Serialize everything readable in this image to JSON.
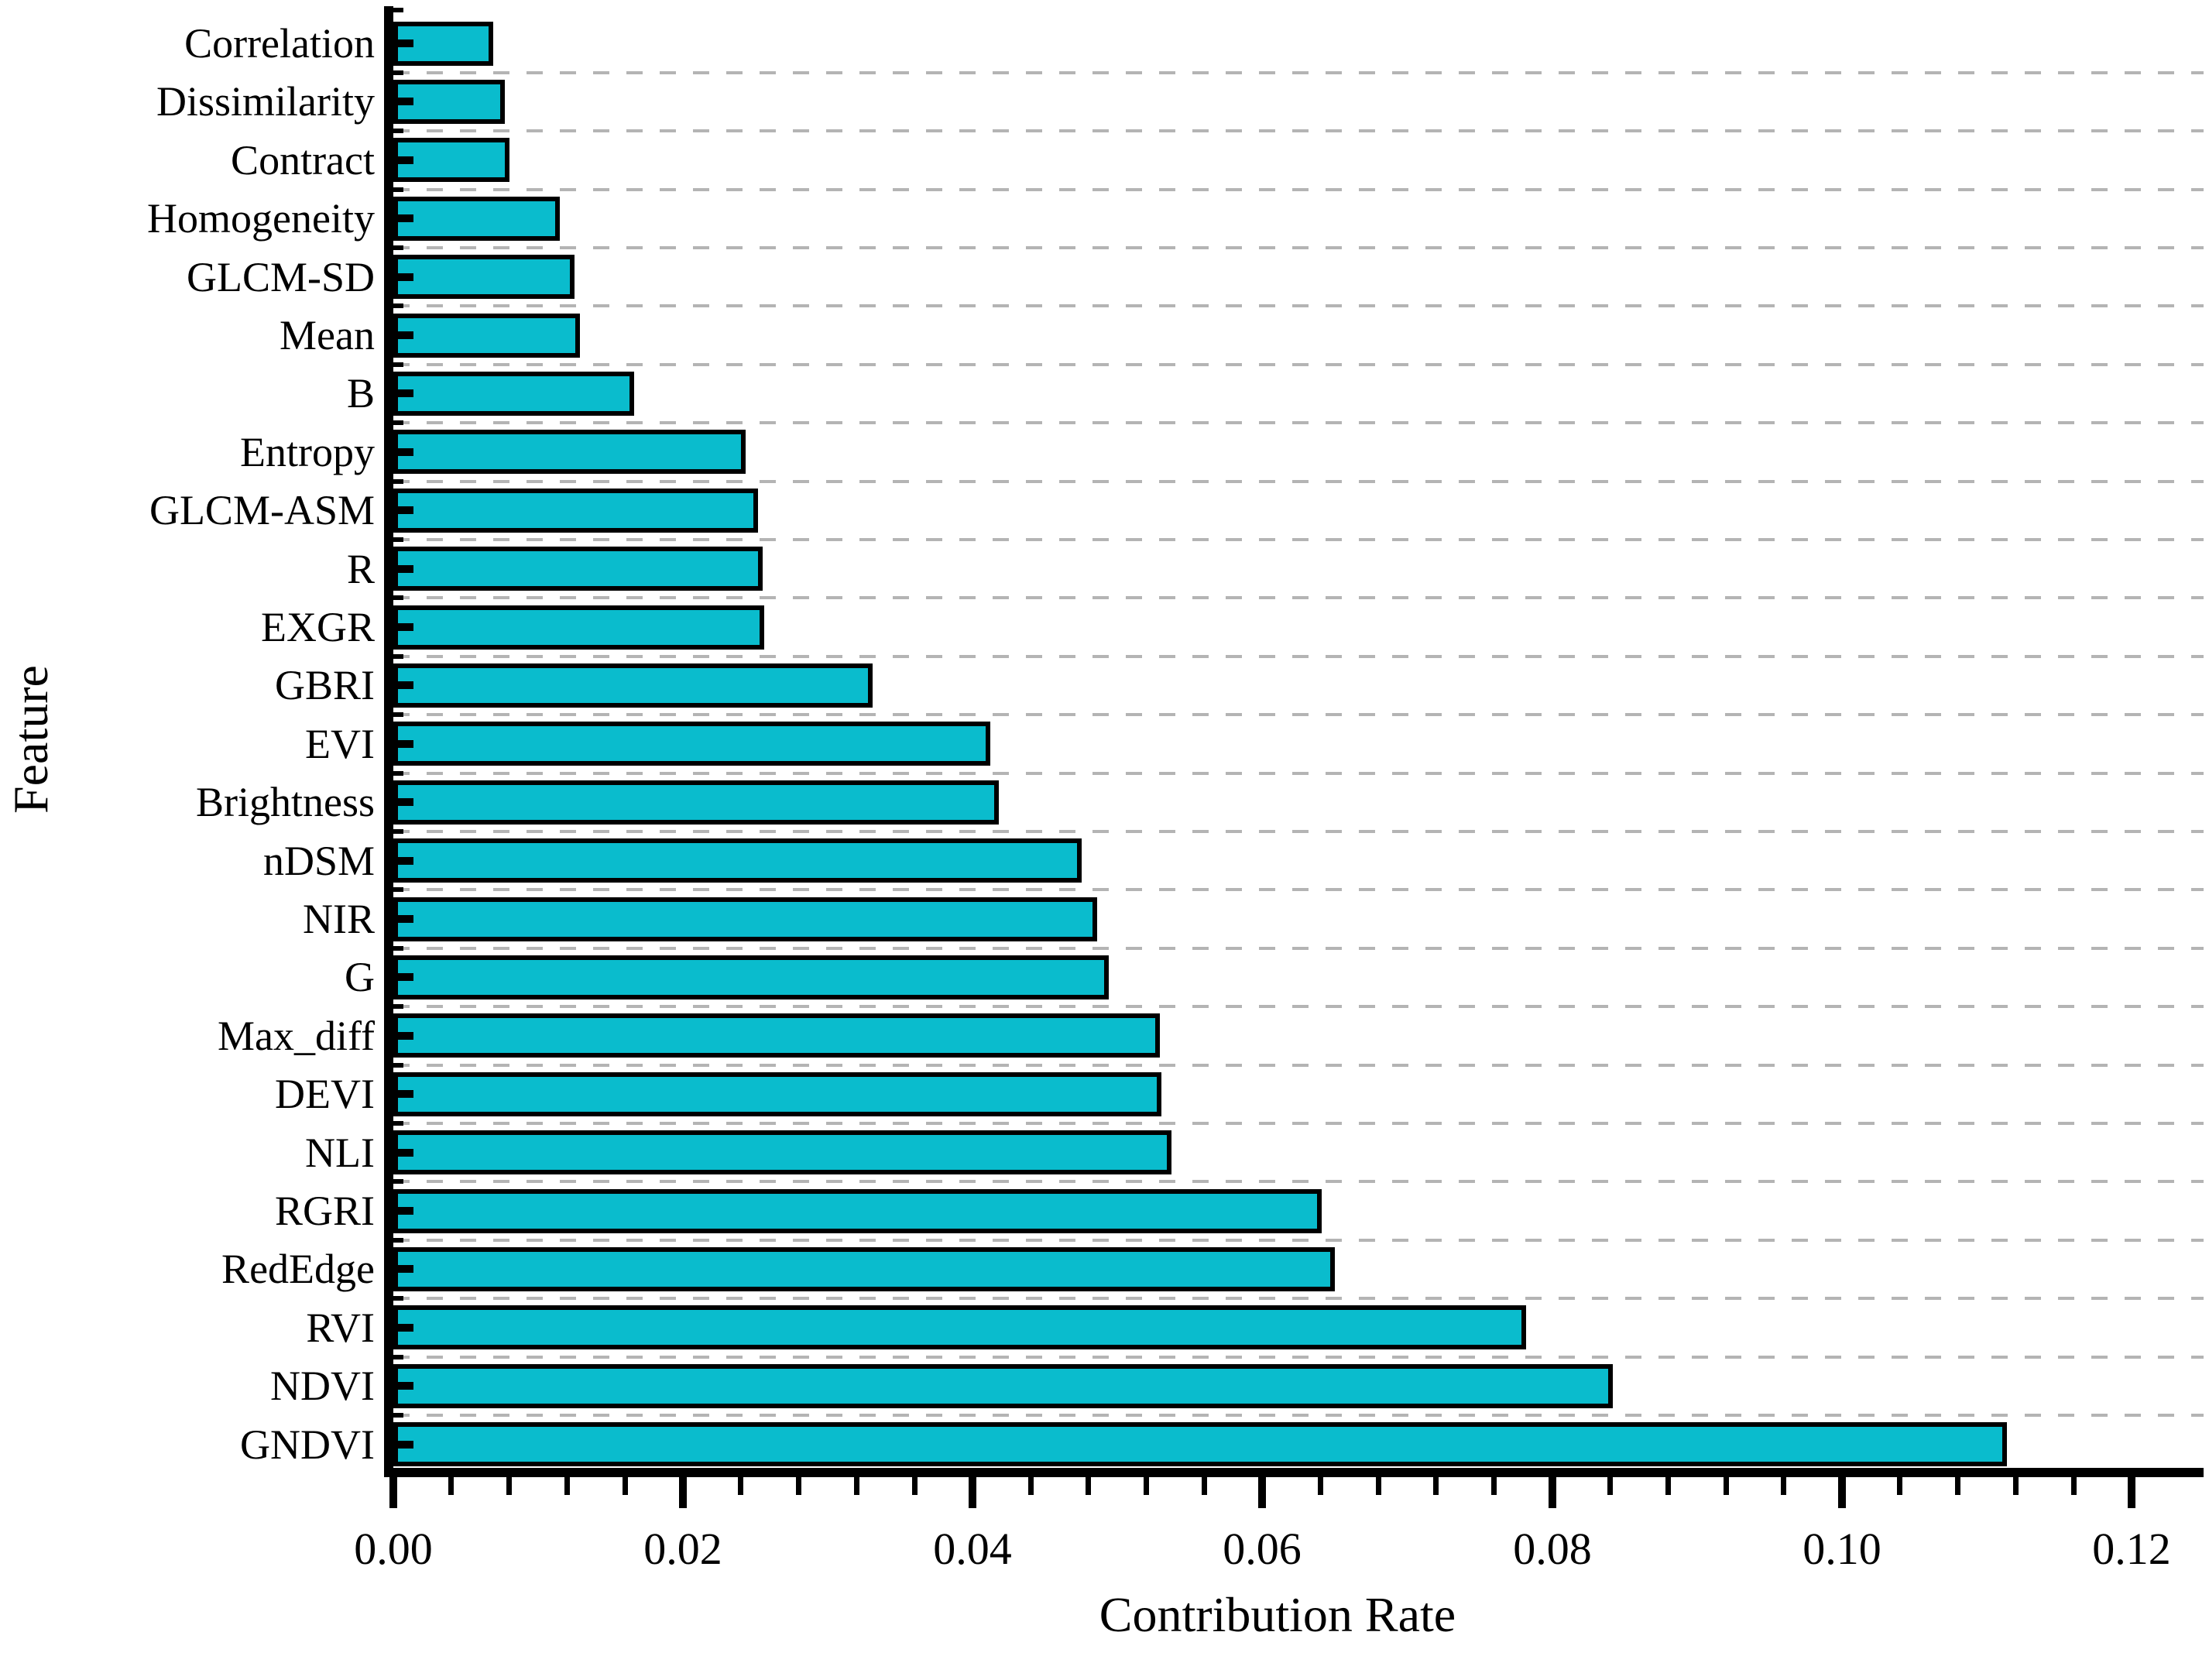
{
  "chart_data": {
    "type": "bar",
    "orientation": "horizontal",
    "title": "",
    "xlabel": "Contribution Rate",
    "ylabel": "Feature",
    "xlim": [
      0,
      0.12
    ],
    "x_tick_labels": [
      "0.00",
      "0.02",
      "0.04",
      "0.06",
      "0.08",
      "0.10",
      "0.12"
    ],
    "x_tick_values": [
      0.0,
      0.02,
      0.04,
      0.06,
      0.08,
      0.1,
      0.12
    ],
    "minor_ticks_between_majors": 4,
    "grid": "horizontal-dashed",
    "legend": "none",
    "bar_color": "#0abccd",
    "bar_border_color": "#000000",
    "gridline_color": "#b4b4b4",
    "categories_top_to_bottom": [
      "Correlation",
      "Dissimilarity",
      "Contract",
      "Homogeneity",
      "GLCM-SD",
      "Mean",
      "B",
      "Entropy",
      "GLCM-ASM",
      "R",
      "EXGR",
      "GBRI",
      "EVI",
      "Brightness",
      "nDSM",
      "NIR",
      "G",
      "Max_diff",
      "DEVI",
      "NLI",
      "RGRI",
      "RedEdge",
      "RVI",
      "NDVI",
      "GNDVI"
    ],
    "values_top_to_bottom": [
      0.0069,
      0.0077,
      0.008,
      0.0115,
      0.0125,
      0.0129,
      0.0166,
      0.0243,
      0.0252,
      0.0255,
      0.0256,
      0.0331,
      0.0412,
      0.0418,
      0.0475,
      0.0486,
      0.0494,
      0.0529,
      0.053,
      0.0537,
      0.0641,
      0.065,
      0.0782,
      0.0842,
      0.1114
    ]
  }
}
